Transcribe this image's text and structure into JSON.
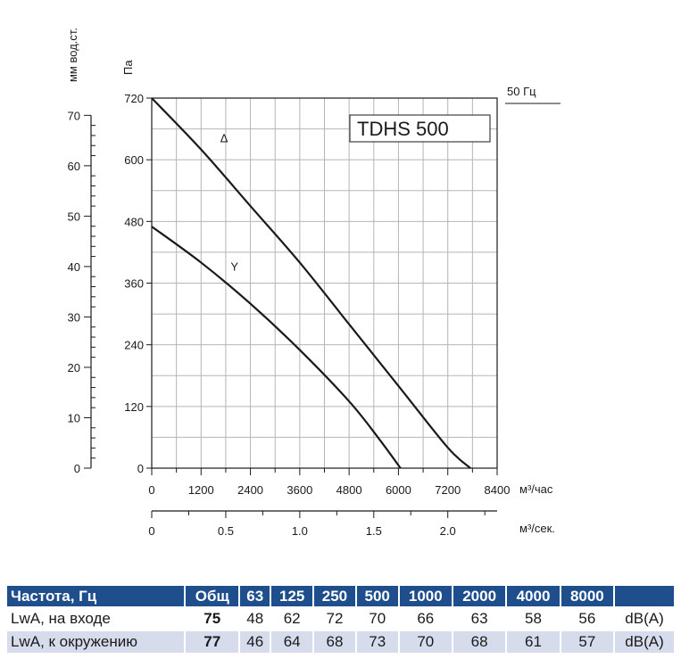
{
  "chart_data": {
    "type": "line",
    "model_label": "TDHS 500",
    "frequency_label": "50 Гц",
    "left_axis_label": "мм вод.ст.",
    "pa_axis_label": "Па",
    "x_unit_label": "м³/час",
    "x2_unit_label": "м³/сек.",
    "xlim": [
      0,
      8400
    ],
    "ylim": [
      0,
      720
    ],
    "x_ticks": [
      "0",
      "1200",
      "2400",
      "3600",
      "4800",
      "6000",
      "7200",
      "8400"
    ],
    "y_ticks": [
      "0",
      "120",
      "240",
      "360",
      "480",
      "600",
      "720"
    ],
    "mm_ticks": [
      "0",
      "10",
      "20",
      "30",
      "40",
      "50",
      "60",
      "70"
    ],
    "x2_ticks": [
      "0",
      "0.5",
      "1.0",
      "1.5",
      "2.0"
    ],
    "grid": true,
    "series": [
      {
        "name": "Δ",
        "x": [
          0,
          1200,
          2400,
          3600,
          4800,
          6000,
          7200,
          7750
        ],
        "y": [
          720,
          620,
          510,
          400,
          280,
          160,
          40,
          0
        ]
      },
      {
        "name": "Y",
        "x": [
          0,
          1200,
          2400,
          3600,
          4800,
          5500,
          6050
        ],
        "y": [
          470,
          400,
          320,
          230,
          130,
          60,
          0
        ]
      }
    ]
  },
  "noise_table": {
    "headers": [
      "Частота, Гц",
      "Общ",
      "63",
      "125",
      "250",
      "500",
      "1000",
      "2000",
      "4000",
      "8000",
      ""
    ],
    "rows": [
      [
        "LwA, на входе",
        "75",
        "48",
        "62",
        "72",
        "70",
        "66",
        "63",
        "58",
        "56",
        "dB(A)"
      ],
      [
        "LwA, к окружению",
        "77",
        "46",
        "64",
        "68",
        "73",
        "70",
        "68",
        "61",
        "57",
        "dB(A)"
      ]
    ]
  },
  "colors": {
    "curve": "#1a1a1a",
    "grid": "#b5b5b5",
    "header_bg": "#1f4e8c",
    "row_alt": "#d6dcec"
  }
}
